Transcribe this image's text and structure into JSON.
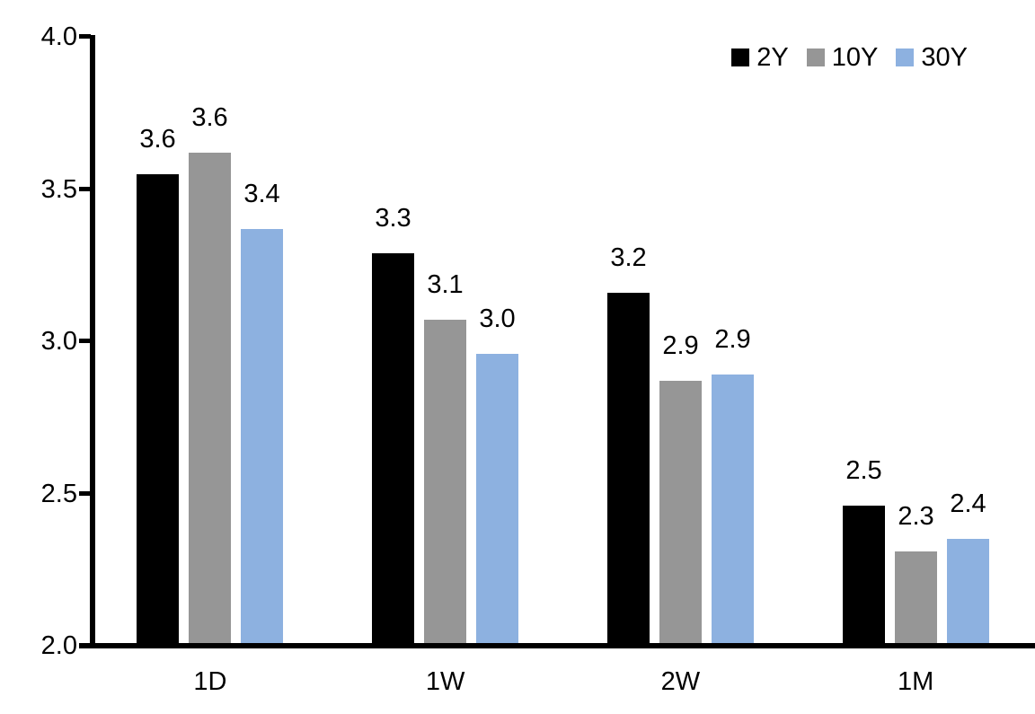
{
  "chart_data": {
    "type": "bar",
    "title": "",
    "xlabel": "",
    "ylabel": "",
    "categories": [
      "1D",
      "1W",
      "2W",
      "1M"
    ],
    "series": [
      {
        "name": "2Y",
        "color": "#000000",
        "values": [
          3.55,
          3.29,
          3.16,
          2.46
        ],
        "labels": [
          "3.6",
          "3.3",
          "3.2",
          "2.5"
        ]
      },
      {
        "name": "10Y",
        "color": "#969696",
        "values": [
          3.62,
          3.07,
          2.87,
          2.31
        ],
        "labels": [
          "3.6",
          "3.1",
          "2.9",
          "2.3"
        ]
      },
      {
        "name": "30Y",
        "color": "#8DB1E0",
        "values": [
          3.37,
          2.96,
          2.89,
          2.35
        ],
        "labels": [
          "3.4",
          "3.0",
          "2.9",
          "2.4"
        ]
      }
    ],
    "ylim": [
      2.0,
      4.0
    ],
    "ytick_step": 0.5,
    "ytick_labels": [
      "2.0",
      "2.5",
      "3.0",
      "3.5",
      "4.0"
    ],
    "grid": false,
    "legend_position": "top-right",
    "data_labels": true,
    "axis_color": "#000000",
    "text_color": "#000000",
    "background_color": "#FFFFFF"
  }
}
